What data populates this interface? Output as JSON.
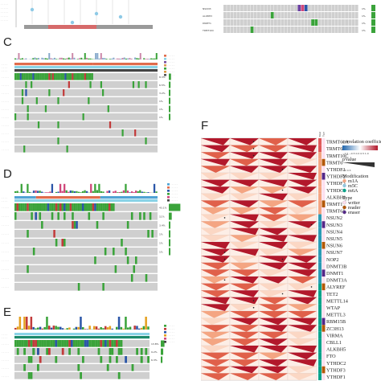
{
  "panels": {
    "c": {
      "letter": "C",
      "stats": [
        "8.3%",
        "6.5%",
        "3.2%",
        "1%",
        "1%",
        "1%"
      ]
    },
    "d": {
      "letter": "D",
      "stats": [
        "43.1%",
        "11%",
        "3.4%",
        "1%",
        "1%",
        "1%"
      ]
    },
    "e": {
      "letter": "E",
      "stats": [
        "13.8%",
        "9.2%",
        "6.3%"
      ]
    },
    "f": {
      "letter": "F"
    },
    "top_right": {
      "stats": [
        "1%",
        "1%",
        "1%",
        "1%"
      ]
    }
  },
  "heatmap": {
    "genes": [
      "TRMT61A",
      "TRMT61B",
      "TRMT10C",
      "TRMT6",
      "YTHDF1",
      "YTHDF2",
      "YTHDF3",
      "YTHDC1",
      "ALKBH1",
      "TRMT1",
      "TRMT61",
      "NSUN2",
      "NSUN3",
      "NSUN4",
      "NSUN5",
      "NSUN6",
      "NSUN7",
      "NOP2",
      "DNMT3B",
      "DNMT1",
      "DNMT3A",
      "ALYREF",
      "TET2",
      "METTL14",
      "WTAP",
      "METTL3",
      "RBM15B",
      "ZC3H13",
      "VIRMA",
      "CBLL1",
      "ALKBH5",
      "FTO",
      "YTHDC2",
      "YTHDF3",
      "YTHDF1"
    ],
    "legend": {
      "corr_title": "correlation coefficient",
      "corr_ticks": [
        "−1.0",
        "−0.5",
        "0.0",
        "0.5",
        "1.0"
      ],
      "p_title": "pValue",
      "p_ticks": [
        "0.0",
        "0.5"
      ],
      "mod_title": "Modification",
      "mods": [
        {
          "label": "m1A",
          "color": "#f4a582"
        },
        {
          "label": "m5C",
          "color": "#92c5de"
        },
        {
          "label": "m6A",
          "color": "#0aa38a"
        }
      ],
      "type_title": "Type",
      "types": [
        {
          "label": "writer",
          "color": "#fde0ef"
        },
        {
          "label": "reader",
          "color": "#b35806"
        },
        {
          "label": "eraser",
          "color": "#542788"
        }
      ]
    },
    "column_labels": [
      "Modification",
      "Type"
    ]
  },
  "mutation_colors": {
    "missense": "#3aa33a",
    "nonsense": "#c23b3b",
    "frame_shift": "#2b56a8",
    "splice": "#e4a020",
    "background": "#cfcfcf"
  }
}
